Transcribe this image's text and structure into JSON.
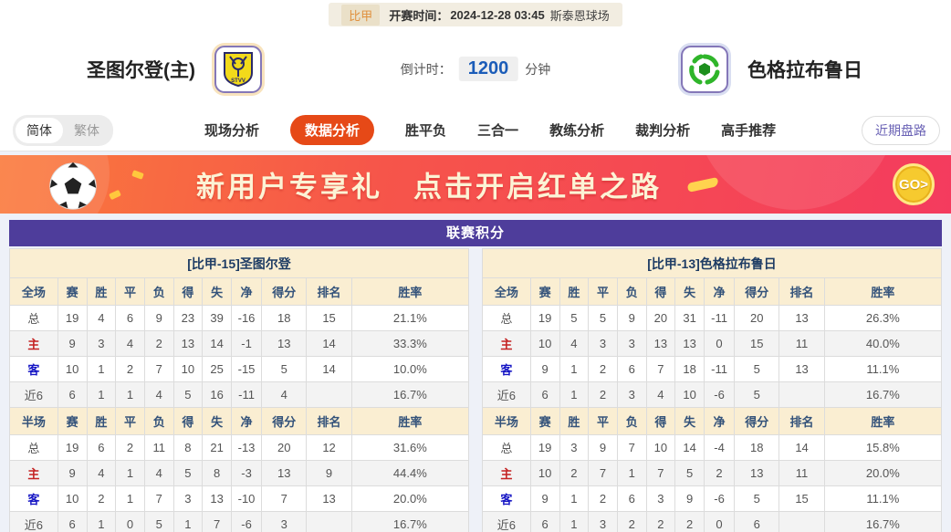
{
  "top_bar": {
    "league": "比甲",
    "kickoff_label": "开赛时间：",
    "kickoff_time": "2024-12-28 03:45",
    "venue": "斯泰恩球场"
  },
  "match_header": {
    "home_team": "圣图尔登(主)",
    "home_badge_text": "STVV",
    "away_team": "色格拉布鲁日",
    "countdown_label": "倒计时：",
    "countdown_value": "1200",
    "countdown_unit": "分钟"
  },
  "nav": {
    "lang_simplified": "简体",
    "lang_traditional": "繁体",
    "tabs": [
      {
        "label": "现场分析",
        "active": false
      },
      {
        "label": "数据分析",
        "active": true
      },
      {
        "label": "胜平负",
        "active": false
      },
      {
        "label": "三合一",
        "active": false
      },
      {
        "label": "教练分析",
        "active": false
      },
      {
        "label": "裁判分析",
        "active": false
      },
      {
        "label": "高手推荐",
        "active": false
      }
    ],
    "recent_trends_button": "近期盘路"
  },
  "banner": {
    "text_left": "新用户专享礼",
    "text_right": "点击开启红单之路",
    "go_label": "GO>"
  },
  "standings": {
    "title": "联赛积分",
    "columns_full": [
      "全场",
      "赛",
      "胜",
      "平",
      "负",
      "得",
      "失",
      "净",
      "得分",
      "排名",
      "胜率"
    ],
    "columns_half": [
      "半场",
      "赛",
      "胜",
      "平",
      "负",
      "得",
      "失",
      "净",
      "得分",
      "排名",
      "胜率"
    ],
    "left": {
      "team_title": "[比甲-15]圣图尔登",
      "full": [
        [
          "总",
          "19",
          "4",
          "6",
          "9",
          "23",
          "39",
          "-16",
          "18",
          "15",
          "21.1%"
        ],
        [
          "主",
          "9",
          "3",
          "4",
          "2",
          "13",
          "14",
          "-1",
          "13",
          "14",
          "33.3%"
        ],
        [
          "客",
          "10",
          "1",
          "2",
          "7",
          "10",
          "25",
          "-15",
          "5",
          "14",
          "10.0%"
        ],
        [
          "近6",
          "6",
          "1",
          "1",
          "4",
          "5",
          "16",
          "-11",
          "4",
          "",
          "16.7%"
        ]
      ],
      "half": [
        [
          "总",
          "19",
          "6",
          "2",
          "11",
          "8",
          "21",
          "-13",
          "20",
          "12",
          "31.6%"
        ],
        [
          "主",
          "9",
          "4",
          "1",
          "4",
          "5",
          "8",
          "-3",
          "13",
          "9",
          "44.4%"
        ],
        [
          "客",
          "10",
          "2",
          "1",
          "7",
          "3",
          "13",
          "-10",
          "7",
          "13",
          "20.0%"
        ],
        [
          "近6",
          "6",
          "1",
          "0",
          "5",
          "1",
          "7",
          "-6",
          "3",
          "",
          "16.7%"
        ]
      ]
    },
    "right": {
      "team_title": "[比甲-13]色格拉布鲁日",
      "full": [
        [
          "总",
          "19",
          "5",
          "5",
          "9",
          "20",
          "31",
          "-11",
          "20",
          "13",
          "26.3%"
        ],
        [
          "主",
          "10",
          "4",
          "3",
          "3",
          "13",
          "13",
          "0",
          "15",
          "11",
          "40.0%"
        ],
        [
          "客",
          "9",
          "1",
          "2",
          "6",
          "7",
          "18",
          "-11",
          "5",
          "13",
          "11.1%"
        ],
        [
          "近6",
          "6",
          "1",
          "2",
          "3",
          "4",
          "10",
          "-6",
          "5",
          "",
          "16.7%"
        ]
      ],
      "half": [
        [
          "总",
          "19",
          "3",
          "9",
          "7",
          "10",
          "14",
          "-4",
          "18",
          "14",
          "15.8%"
        ],
        [
          "主",
          "10",
          "2",
          "7",
          "1",
          "7",
          "5",
          "2",
          "13",
          "11",
          "20.0%"
        ],
        [
          "客",
          "9",
          "1",
          "2",
          "6",
          "3",
          "9",
          "-6",
          "5",
          "15",
          "11.1%"
        ],
        [
          "近6",
          "6",
          "1",
          "3",
          "2",
          "2",
          "2",
          "0",
          "6",
          "",
          "16.7%"
        ]
      ]
    }
  },
  "colors": {
    "accent_tab": "#e64917",
    "table_header_purple": "#4e3d9b",
    "table_cream": "#faeed2",
    "home_row_red": "#c42222",
    "away_row_blue": "#1515c4",
    "countdown_blue": "#1b5cb8",
    "banner_gradient_start": "#fa7a3c",
    "banner_gradient_end": "#f43b5e",
    "league_chip_orange": "#e0913f"
  }
}
